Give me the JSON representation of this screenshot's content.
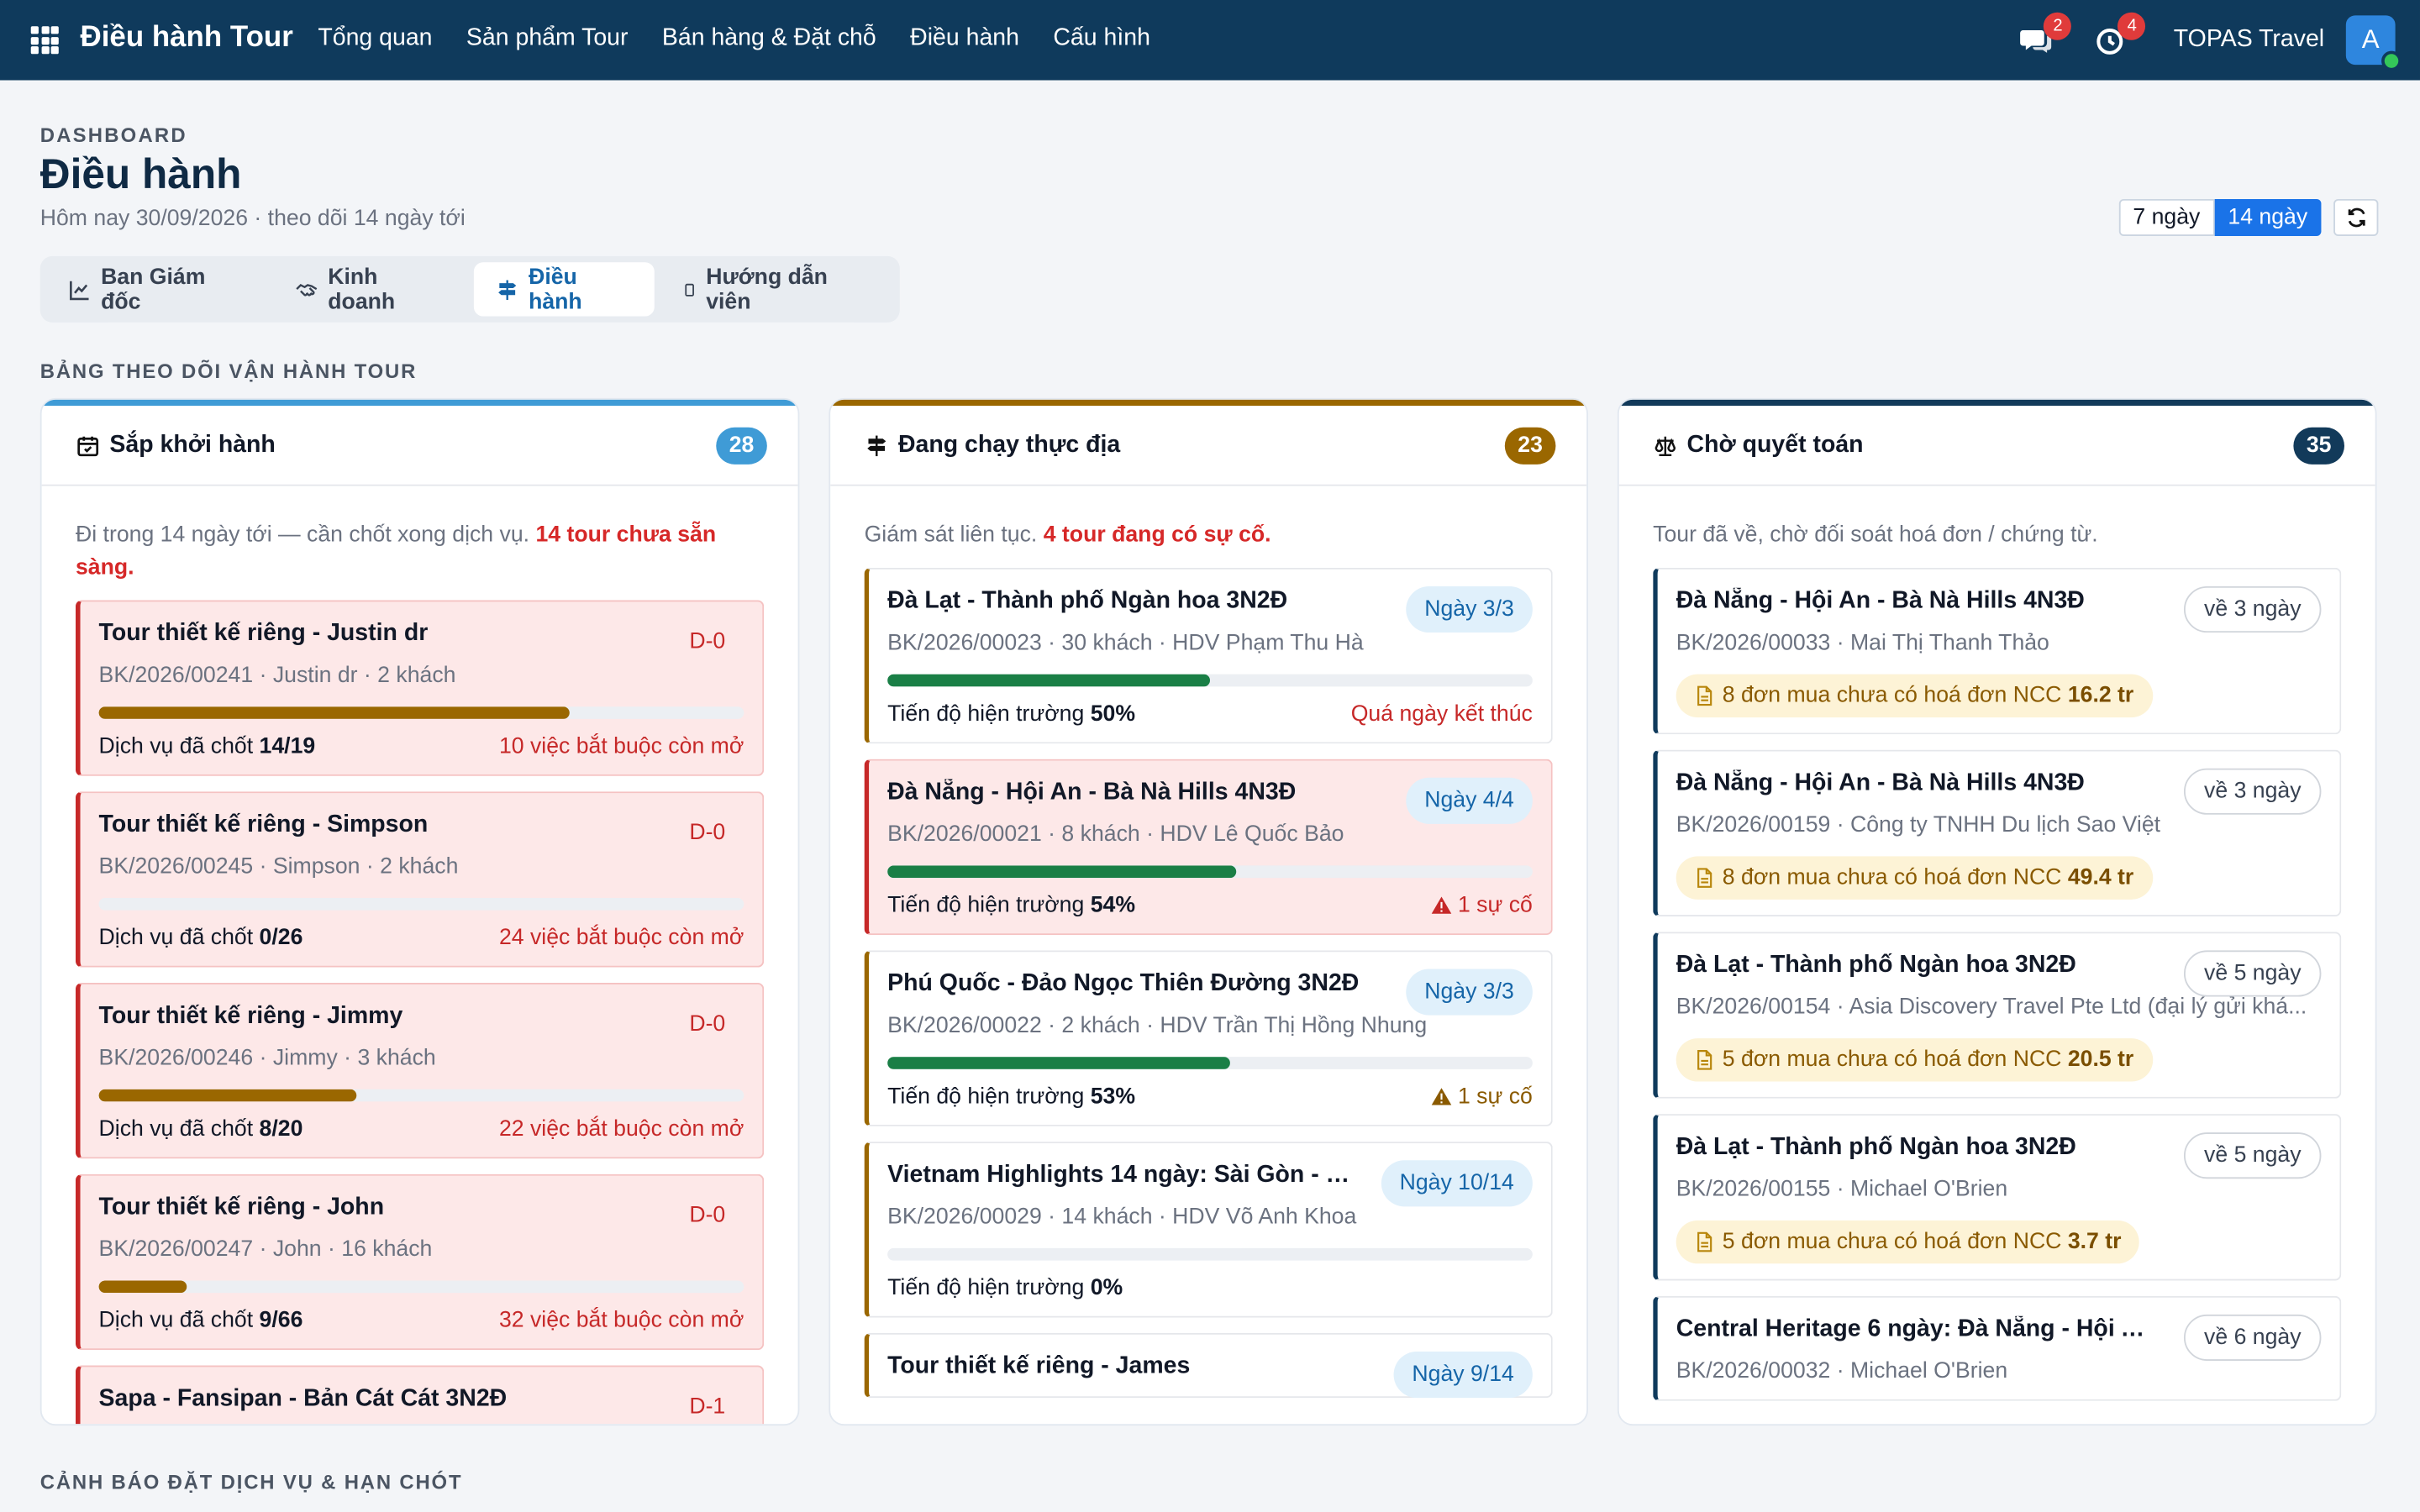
{
  "nav": {
    "brand": "Điều hành Tour",
    "menu": [
      "Tổng quan",
      "Sản phẩm Tour",
      "Bán hàng & Đặt chỗ",
      "Điều hành",
      "Cấu hình"
    ],
    "chat_badge": "2",
    "alarm_badge": "4",
    "company": "TOPAS Travel",
    "avatar_letter": "A"
  },
  "header": {
    "eyebrow": "DASHBOARD",
    "title": "Điều hành",
    "subtitle": "Hôm nay 30/09/2026 · theo dõi 14 ngày tới",
    "range_options": [
      "7 ngày",
      "14 ngày"
    ],
    "range_selected": "14 ngày"
  },
  "tabs": [
    {
      "label": "Ban Giám đốc",
      "icon": "chart-line-icon"
    },
    {
      "label": "Kinh doanh",
      "icon": "handshake-icon"
    },
    {
      "label": "Điều hành",
      "icon": "signpost-icon",
      "active": true
    },
    {
      "label": "Hướng dẫn viên",
      "icon": "phone-icon"
    }
  ],
  "section1": "BẢNG THEO DÕI VẬN HÀNH TOUR",
  "section2": "CẢNH BÁO ĐẶT DỊCH VỤ & HẠN CHÓT",
  "columns": {
    "upcoming": {
      "title": "Sắp khởi hành",
      "count": "28",
      "color": "#3f9bd6",
      "desc_prefix": "Đi trong 14 ngày tới — cần chốt xong dịch vụ. ",
      "desc_bold": "14 tour chưa sẵn sàng.",
      "cards": [
        {
          "title": "Tour thiết kế riêng - Justin dr",
          "tag": "D-0",
          "meta": "BK/2026/00241 · Justin dr · 2 khách",
          "progress": 0.73,
          "label": "Dịch vụ đã chốt ",
          "value": "14/19",
          "right": "10 việc bắt buộc còn mở"
        },
        {
          "title": "Tour thiết kế riêng - Simpson",
          "tag": "D-0",
          "meta": "BK/2026/00245 · Simpson · 2 khách",
          "progress": 0.0,
          "label": "Dịch vụ đã chốt ",
          "value": "0/26",
          "right": "24 việc bắt buộc còn mở"
        },
        {
          "title": "Tour thiết kế riêng - Jimmy",
          "tag": "D-0",
          "meta": "BK/2026/00246 · Jimmy · 3 khách",
          "progress": 0.4,
          "label": "Dịch vụ đã chốt ",
          "value": "8/20",
          "right": "22 việc bắt buộc còn mở"
        },
        {
          "title": "Tour thiết kế riêng - John",
          "tag": "D-0",
          "meta": "BK/2026/00247 · John · 16 khách",
          "progress": 0.136,
          "label": "Dịch vụ đã chốt ",
          "value": "9/66",
          "right": "32 việc bắt buộc còn mở"
        },
        {
          "title": "Sapa - Fansipan - Bản Cát Cát 3N2Đ",
          "tag": "D-1",
          "meta": "",
          "progress": 0,
          "label": "",
          "value": "",
          "right": ""
        }
      ]
    },
    "running": {
      "title": "Đang chạy thực địa",
      "count": "23",
      "color": "#9a6700",
      "desc_prefix": "Giám sát liên tục. ",
      "desc_bold": "4 tour đang có sự cố.",
      "cards": [
        {
          "title": "Đà Lạt - Thành phố Ngàn hoa 3N2Đ",
          "pill": "Ngày 3/3",
          "meta": "BK/2026/00023 · 30 khách · HDV Phạm Thu Hà",
          "progress": 0.5,
          "label": "Tiến độ hiện trường ",
          "value": "50%",
          "right": "Quá ngày kết thúc",
          "alert": false,
          "red": false
        },
        {
          "title": "Đà Nẵng - Hội An - Bà Nà Hills 4N3Đ",
          "pill": "Ngày 4/4",
          "meta": "BK/2026/00021 · 8 khách · HDV Lê Quốc Bảo",
          "progress": 0.54,
          "label": "Tiến độ hiện trường ",
          "value": "54%",
          "right": "1 sự cố",
          "alert": true,
          "red": true
        },
        {
          "title": "Phú Quốc - Đảo Ngọc Thiên Đường 3N2Đ",
          "pill": "Ngày 3/3",
          "meta": "BK/2026/00022 · 2 khách · HDV Trần Thị Hồng Nhung",
          "progress": 0.53,
          "label": "Tiến độ hiện trường ",
          "value": "53%",
          "right": "1 sự cố",
          "alert": true,
          "red": false
        },
        {
          "title": "Vietnam Highlights 14 ngày: Sài Gòn - M...",
          "pill": "Ngày 10/14",
          "meta": "BK/2026/00029 · 14 khách · HDV Võ Anh Khoa",
          "progress": 0.0,
          "label": "Tiến độ hiện trường ",
          "value": "0%",
          "right": "",
          "alert": false,
          "red": false
        },
        {
          "title": "Tour thiết kế riêng - James",
          "pill": "Ngày 9/14",
          "meta": "",
          "progress": 0,
          "label": "",
          "value": "",
          "right": "",
          "alert": false,
          "red": false
        }
      ]
    },
    "settlement": {
      "title": "Chờ quyết toán",
      "count": "35",
      "color": "#123a5a",
      "desc": "Tour đã về, chờ đối soát hoá đơn / chứng từ.",
      "cards": [
        {
          "title": "Đà Nẵng - Hội An - Bà Nà Hills 4N3Đ",
          "pill": "về 3 ngày",
          "meta": "BK/2026/00033 · Mai Thị Thanh Thảo",
          "inv_text": "8 đơn mua chưa có hoá đơn NCC ",
          "inv_amount": "16.2 tr"
        },
        {
          "title": "Đà Nẵng - Hội An - Bà Nà Hills 4N3Đ",
          "pill": "về 3 ngày",
          "meta": "BK/2026/00159 · Công ty TNHH Du lịch Sao Việt",
          "inv_text": "8 đơn mua chưa có hoá đơn NCC ",
          "inv_amount": "49.4 tr"
        },
        {
          "title": "Đà Lạt - Thành phố Ngàn hoa 3N2Đ",
          "pill": "về 5 ngày",
          "meta": "BK/2026/00154 · Asia Discovery Travel Pte Ltd (đại lý gửi khá...",
          "inv_text": "5 đơn mua chưa có hoá đơn NCC ",
          "inv_amount": "20.5 tr"
        },
        {
          "title": "Đà Lạt - Thành phố Ngàn hoa 3N2Đ",
          "pill": "về 5 ngày",
          "meta": "BK/2026/00155 · Michael O'Brien",
          "inv_text": "5 đơn mua chưa có hoá đơn NCC ",
          "inv_amount": "3.7 tr"
        },
        {
          "title": "Central Heritage 6 ngày: Đà Nẵng - Hội A...",
          "pill": "về 6 ngày",
          "meta": "BK/2026/00032 · Michael O'Brien",
          "inv_text": "",
          "inv_amount": ""
        }
      ]
    }
  }
}
